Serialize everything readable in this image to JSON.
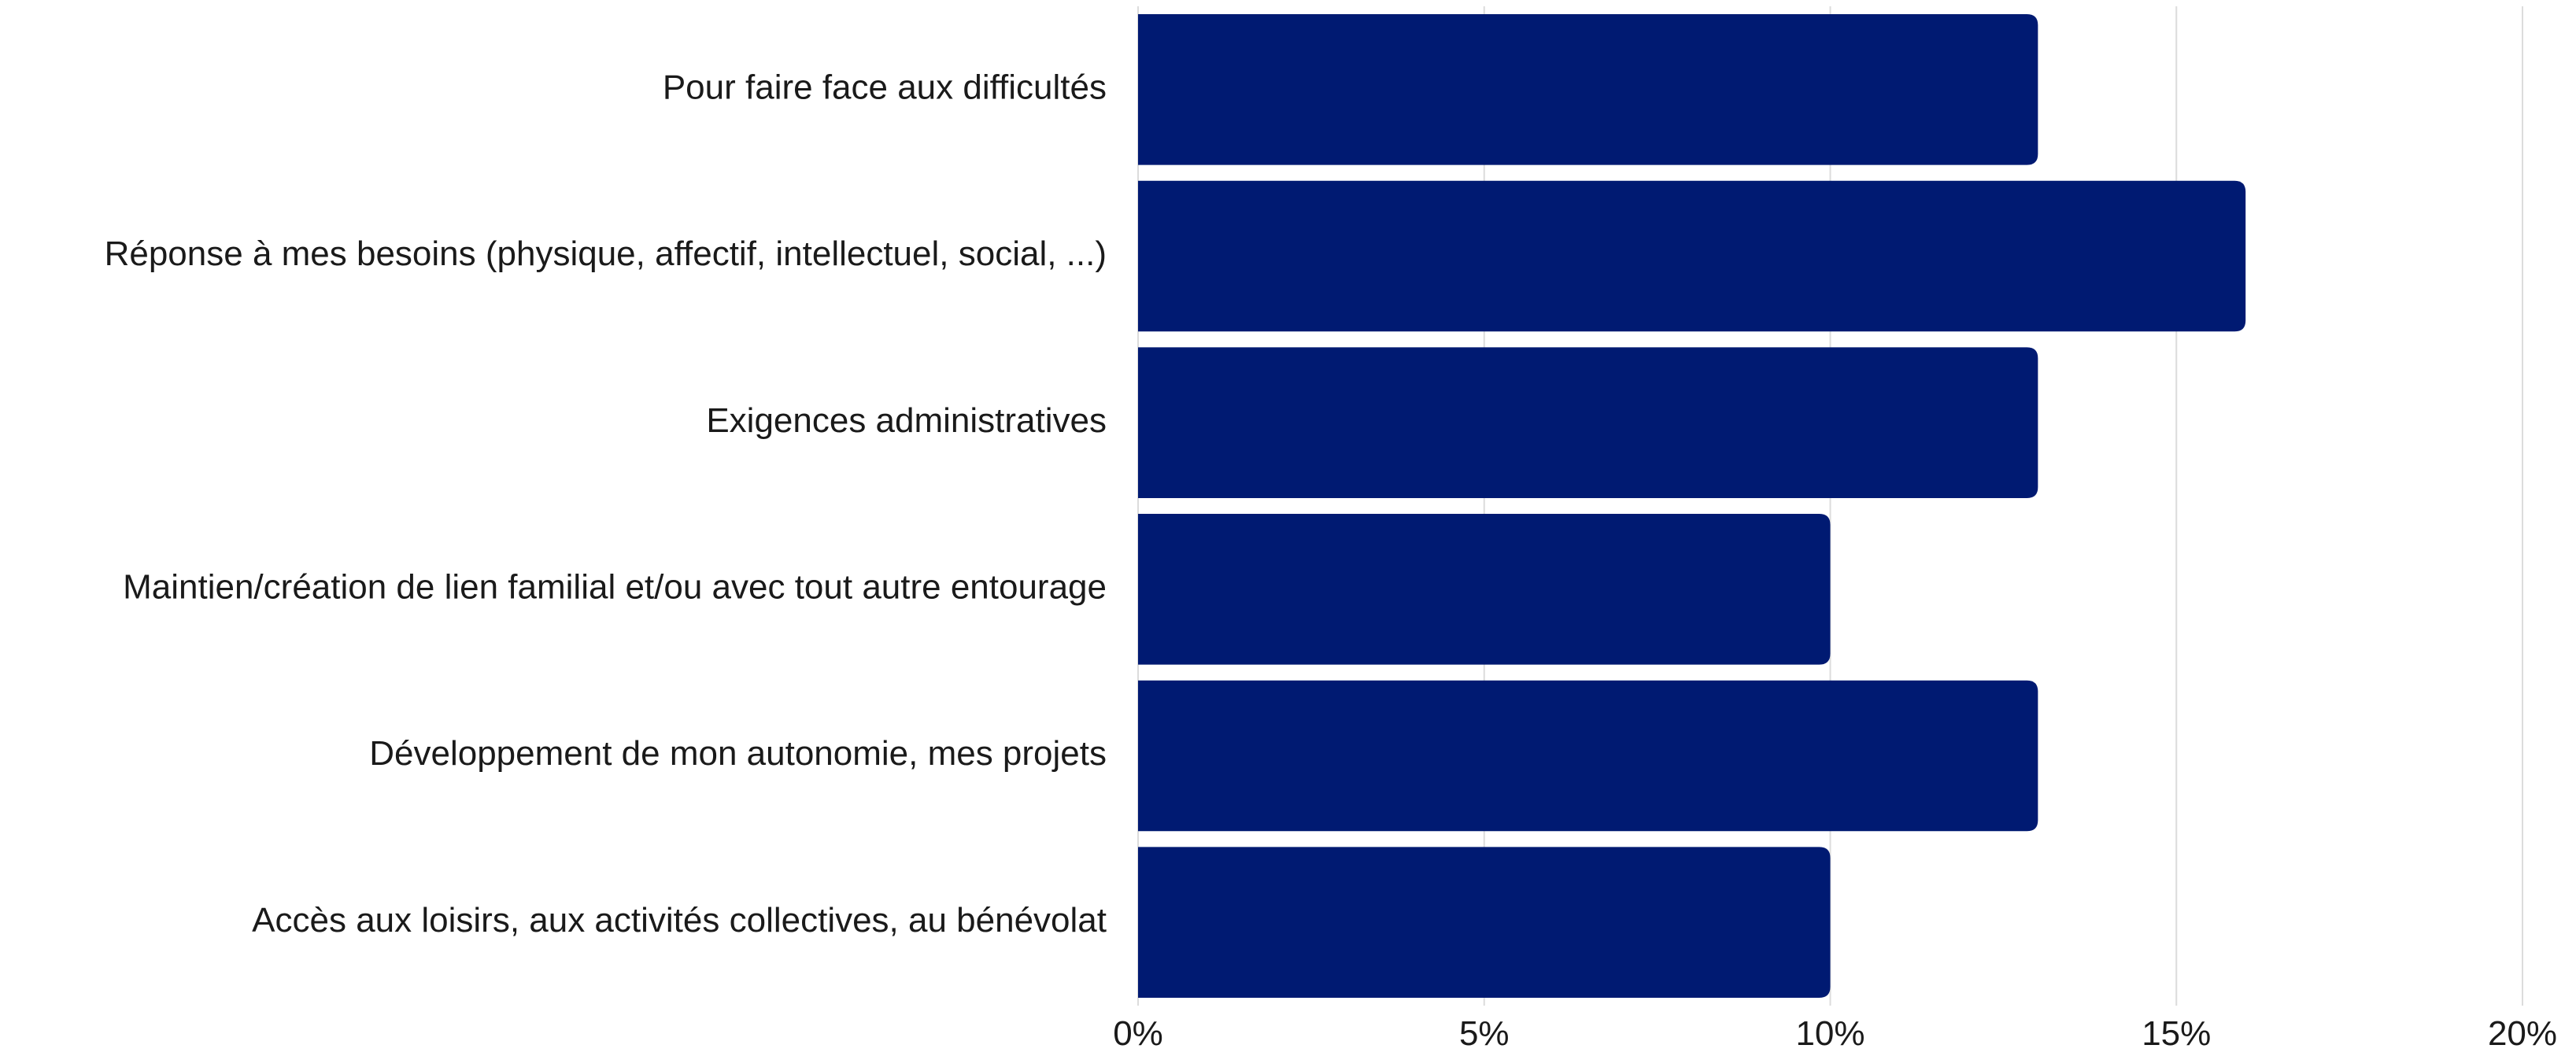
{
  "chart_data": {
    "type": "bar",
    "orientation": "horizontal",
    "categories": [
      "Pour faire face aux difficultés",
      "Réponse à mes besoins (physique, affectif, intellectuel, social, ...)",
      "Exigences administratives",
      "Maintien/création de lien familial et/ou avec tout autre entourage",
      "Développement de mon autonomie, mes projets",
      "Accès aux loisirs, aux activités collectives, au bénévolat"
    ],
    "values": [
      13,
      16,
      13,
      10,
      13,
      10
    ],
    "unit": "%",
    "xlim": [
      0,
      20
    ],
    "xticks": [
      0,
      5,
      10,
      15,
      20
    ],
    "xtick_labels": [
      "0%",
      "5%",
      "10%",
      "15%",
      "20%"
    ],
    "title": "",
    "xlabel": "",
    "ylabel": "",
    "grid": true,
    "legend": false,
    "bar_color": "#001a72"
  }
}
